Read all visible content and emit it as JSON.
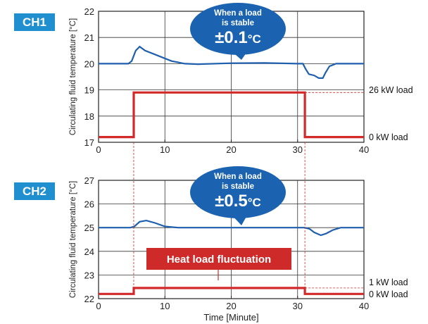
{
  "chart_data": [
    {
      "type": "line",
      "panel_label": "CH1",
      "ylabel": "Circulating fluid temperature [°C]",
      "ylim": [
        17,
        22
      ],
      "yticks": [
        "17",
        "18",
        "19",
        "20",
        "21",
        "22"
      ],
      "xlim": [
        0,
        40
      ],
      "xticks": [
        "0",
        "10",
        "20",
        "30",
        "40"
      ],
      "grid": true,
      "series": [
        {
          "color": "#1f5fae",
          "x": [
            0,
            4.5,
            5,
            5.6,
            6.2,
            7,
            9,
            11,
            13,
            15,
            20,
            25,
            30,
            30.8,
            31.2,
            31.7,
            32.5,
            33.2,
            33.8,
            34.2,
            34.8,
            35.8,
            40
          ],
          "y": [
            20.0,
            20.0,
            20.1,
            20.5,
            20.65,
            20.5,
            20.3,
            20.1,
            20.0,
            19.98,
            20.02,
            20.03,
            20.0,
            20.0,
            19.8,
            19.6,
            19.55,
            19.45,
            19.45,
            19.65,
            19.9,
            20.0,
            20.0
          ]
        },
        {
          "name": "load",
          "color": "#d22a2a",
          "x": [
            0,
            5.3,
            5.3,
            31.1,
            31.1,
            40
          ],
          "y": [
            17.2,
            17.2,
            18.9,
            18.9,
            17.2,
            17.2
          ]
        }
      ],
      "annotations": {
        "callout_line1": "When a load",
        "callout_line2": "is stable",
        "callout_value": "±0.1",
        "callout_unit": "°C",
        "load_high": "26 kW load",
        "load_low": "0 kW load"
      }
    },
    {
      "type": "line",
      "panel_label": "CH2",
      "ylabel": "Circulating fluid temperature [°C]",
      "ylim": [
        22,
        27
      ],
      "yticks": [
        "22",
        "23",
        "24",
        "25",
        "26",
        "27"
      ],
      "xlim": [
        0,
        40
      ],
      "xticks": [
        "0",
        "10",
        "20",
        "30",
        "40"
      ],
      "xlabel": "Time [Minute]",
      "grid": true,
      "series": [
        {
          "color": "#1f5fae",
          "x": [
            0,
            4.8,
            5.4,
            6.2,
            7.2,
            8.5,
            10,
            12,
            15,
            20,
            25,
            30,
            31,
            31.8,
            32.5,
            33.5,
            34.3,
            35.3,
            36.5,
            40
          ],
          "y": [
            25.0,
            25.0,
            25.05,
            25.25,
            25.3,
            25.2,
            25.05,
            25.0,
            25.0,
            25.0,
            25.0,
            25.0,
            25.0,
            24.95,
            24.8,
            24.68,
            24.75,
            24.9,
            25.0,
            25.0
          ]
        },
        {
          "name": "load",
          "color": "#d22a2a",
          "x": [
            0,
            5.3,
            5.3,
            31.1,
            31.1,
            40
          ],
          "y": [
            22.2,
            22.2,
            22.45,
            22.45,
            22.2,
            22.2
          ]
        }
      ],
      "annotations": {
        "callout_line1": "When a load",
        "callout_line2": "is stable",
        "callout_value": "±0.5",
        "callout_unit": "°C",
        "load_high": "1 kW load",
        "load_low": "0 kW load",
        "load_box": "Heat load fluctuation"
      }
    }
  ]
}
